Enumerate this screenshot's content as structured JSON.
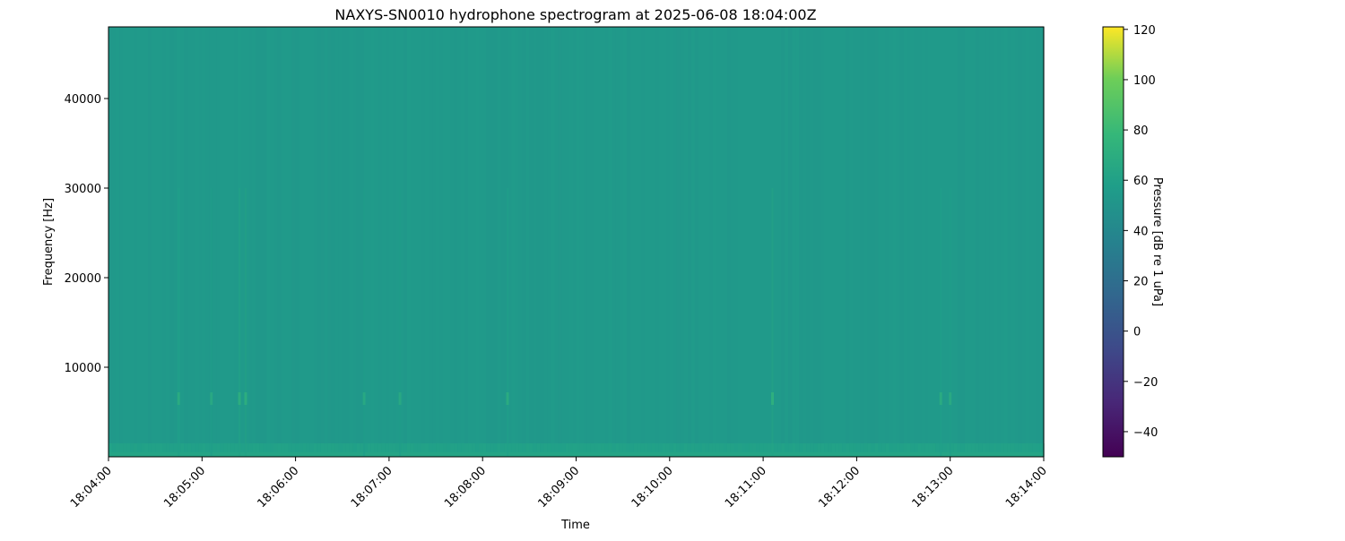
{
  "chart_data": {
    "type": "heatmap",
    "title": "NAXYS-SN0010 hydrophone spectrogram at 2025-06-08 18:04:00Z",
    "xlabel": "Time",
    "ylabel": "Frequency [Hz]",
    "x_range": [
      "18:04:00",
      "18:14:00"
    ],
    "x_ticks": [
      "18:04:00",
      "18:05:00",
      "18:06:00",
      "18:07:00",
      "18:08:00",
      "18:09:00",
      "18:10:00",
      "18:11:00",
      "18:12:00",
      "18:13:00",
      "18:14:00"
    ],
    "ylim": [
      0,
      48000
    ],
    "y_ticks": [
      10000,
      20000,
      30000,
      40000
    ],
    "y_tick_labels": [
      "10000",
      "20000",
      "30000",
      "40000"
    ],
    "colormap": "viridis",
    "colorbar": {
      "label": "Pressure [dB re 1 uPa]",
      "range": [
        -50,
        121
      ],
      "ticks": [
        -40,
        -20,
        0,
        20,
        40,
        60,
        80,
        100,
        120
      ],
      "tick_labels": [
        "−40",
        "−20",
        "0",
        "20",
        "40",
        "60",
        "80",
        "100",
        "120"
      ]
    },
    "background_level_db": 54,
    "low_frequency_band_db": 60,
    "transients": [
      {
        "time": "18:04:45",
        "freq_hz": 6500,
        "level_db": 68
      },
      {
        "time": "18:05:06",
        "freq_hz": 6500,
        "level_db": 66
      },
      {
        "time": "18:05:24",
        "freq_hz": 6500,
        "level_db": 70
      },
      {
        "time": "18:05:28",
        "freq_hz": 6500,
        "level_db": 70
      },
      {
        "time": "18:06:44",
        "freq_hz": 6500,
        "level_db": 66
      },
      {
        "time": "18:07:07",
        "freq_hz": 6500,
        "level_db": 66
      },
      {
        "time": "18:08:16",
        "freq_hz": 6500,
        "level_db": 68
      },
      {
        "time": "18:11:06",
        "freq_hz": 6500,
        "level_db": 72
      },
      {
        "time": "18:12:54",
        "freq_hz": 6500,
        "level_db": 68
      },
      {
        "time": "18:13:00",
        "freq_hz": 6500,
        "level_db": 67
      }
    ]
  }
}
